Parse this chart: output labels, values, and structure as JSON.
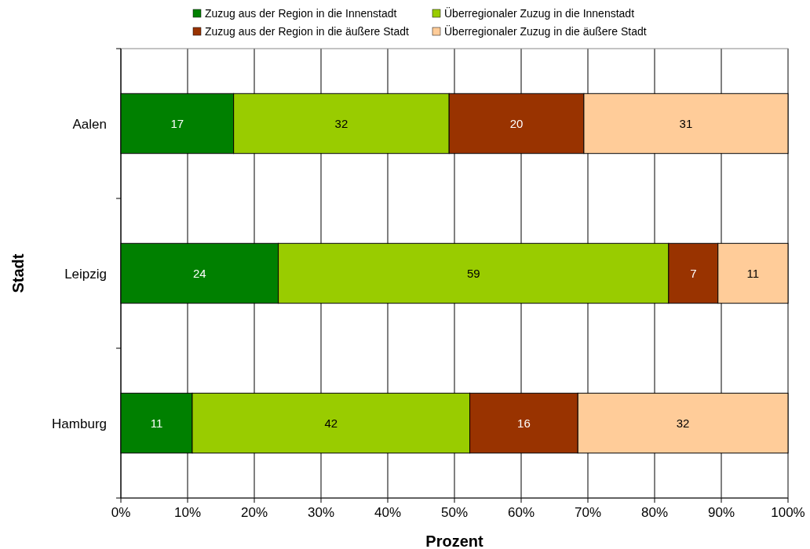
{
  "chart_data": {
    "type": "bar",
    "orientation": "horizontal",
    "stacked": true,
    "xlabel": "Prozent",
    "ylabel": "Stadt",
    "categories": [
      "Aalen",
      "Leipzig",
      "Hamburg"
    ],
    "series": [
      {
        "name": "Zuzug aus der Region in die Innenstadt",
        "color": "#008000",
        "values": [
          16.9,
          23.6,
          10.7
        ],
        "value_labels": [
          "17",
          "24",
          "11"
        ]
      },
      {
        "name": "Überregionaler Zuzug in die Innenstadt",
        "color": "#99cc00",
        "values": [
          32.3,
          58.5,
          41.6
        ],
        "value_labels": [
          "32",
          "59",
          "42"
        ]
      },
      {
        "name": "Zuzug aus der Region in die äußere Stadt",
        "color": "#993300",
        "values": [
          20.2,
          7.4,
          16.2
        ],
        "value_labels": [
          "20",
          "7",
          "16"
        ]
      },
      {
        "name": "Überregionaler Zuzug in die äußere Stadt",
        "color": "#ffcc99",
        "values": [
          30.6,
          10.5,
          31.5
        ],
        "value_labels": [
          "31",
          "11",
          "32"
        ]
      }
    ],
    "xlim": [
      0,
      100
    ],
    "xticks": [
      {
        "value": 0,
        "label": "0%"
      },
      {
        "value": 10,
        "label": "10%"
      },
      {
        "value": 20,
        "label": "20%"
      },
      {
        "value": 30,
        "label": "30%"
      },
      {
        "value": 40,
        "label": "40%"
      },
      {
        "value": 50,
        "label": "50%"
      },
      {
        "value": 60,
        "label": "60%"
      },
      {
        "value": 70,
        "label": "70%"
      },
      {
        "value": 80,
        "label": "80%"
      },
      {
        "value": 90,
        "label": "90%"
      },
      {
        "value": 100,
        "label": "100%"
      }
    ],
    "grid": "x",
    "legend": "top"
  }
}
